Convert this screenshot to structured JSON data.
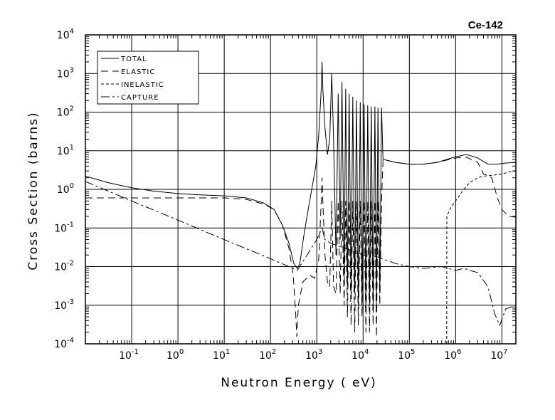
{
  "chart_data": {
    "type": "line",
    "title": "Ce-142",
    "xlabel": "Neutron Energy ( eV)",
    "ylabel": "Cross Section (barns)",
    "xscale": "log",
    "yscale": "log",
    "xlim": [
      0.01,
      20000000
    ],
    "ylim": [
      0.0001,
      10000
    ],
    "grid": true,
    "legend_position": "top-left",
    "x_ticks": [
      {
        "base": "10",
        "exp": "-1",
        "value": 0.1
      },
      {
        "base": "10",
        "exp": "0",
        "value": 1
      },
      {
        "base": "10",
        "exp": "1",
        "value": 10
      },
      {
        "base": "10",
        "exp": "2",
        "value": 100
      },
      {
        "base": "10",
        "exp": "3",
        "value": 1000
      },
      {
        "base": "10",
        "exp": "4",
        "value": 10000
      },
      {
        "base": "10",
        "exp": "5",
        "value": 100000
      },
      {
        "base": "10",
        "exp": "6",
        "value": 1000000
      },
      {
        "base": "10",
        "exp": "7",
        "value": 10000000
      }
    ],
    "y_ticks": [
      {
        "base": "10",
        "exp": "-4",
        "value": 0.0001
      },
      {
        "base": "10",
        "exp": "-3",
        "value": 0.001
      },
      {
        "base": "10",
        "exp": "-2",
        "value": 0.01
      },
      {
        "base": "10",
        "exp": "-1",
        "value": 0.1
      },
      {
        "base": "10",
        "exp": "0",
        "value": 1
      },
      {
        "base": "10",
        "exp": "1",
        "value": 10
      },
      {
        "base": "10",
        "exp": "2",
        "value": 100
      },
      {
        "base": "10",
        "exp": "3",
        "value": 1000
      },
      {
        "base": "10",
        "exp": "4",
        "value": 10000
      }
    ],
    "series": [
      {
        "name": "TOTAL",
        "dash": "none",
        "points": [
          [
            0.01,
            2.2
          ],
          [
            0.03,
            1.5
          ],
          [
            0.1,
            1.1
          ],
          [
            0.3,
            0.9
          ],
          [
            1,
            0.78
          ],
          [
            3,
            0.72
          ],
          [
            10,
            0.68
          ],
          [
            30,
            0.6
          ],
          [
            70,
            0.45
          ],
          [
            120,
            0.3
          ],
          [
            180,
            0.12
          ],
          [
            250,
            0.04
          ],
          [
            320,
            0.012
          ],
          [
            380,
            0.009
          ],
          [
            430,
            0.012
          ],
          [
            520,
            0.06
          ],
          [
            650,
            0.3
          ],
          [
            800,
            1.2
          ],
          [
            950,
            4
          ],
          [
            1100,
            25
          ],
          [
            1250,
            400
          ],
          [
            1300,
            2000
          ],
          [
            1350,
            400
          ],
          [
            1500,
            40
          ],
          [
            1700,
            8
          ],
          [
            1900,
            20
          ],
          [
            2100,
            1000
          ],
          [
            2300,
            20
          ],
          [
            2600,
            0.02
          ],
          [
            2900,
            300
          ],
          [
            3200,
            0.05
          ],
          [
            3500,
            600
          ],
          [
            3900,
            0.005
          ],
          [
            4200,
            400
          ],
          [
            4600,
            0.003
          ],
          [
            5000,
            300
          ],
          [
            5500,
            0.002
          ],
          [
            6000,
            250
          ],
          [
            6600,
            0.002
          ],
          [
            7200,
            200
          ],
          [
            7900,
            0.001
          ],
          [
            8700,
            180
          ],
          [
            9500,
            0.001
          ],
          [
            10500,
            160
          ],
          [
            11500,
            0.0008
          ],
          [
            12600,
            150
          ],
          [
            13800,
            0.001
          ],
          [
            15000,
            140
          ],
          [
            16500,
            0.001
          ],
          [
            18000,
            140
          ],
          [
            19500,
            0.001
          ],
          [
            21000,
            130
          ],
          [
            23000,
            0.002
          ],
          [
            25000,
            130
          ],
          [
            27000,
            6
          ],
          [
            50000,
            5
          ],
          [
            100000,
            4.5
          ],
          [
            200000,
            4.5
          ],
          [
            400000,
            5
          ],
          [
            1000000,
            7
          ],
          [
            1700000,
            8
          ],
          [
            3000000,
            6.5
          ],
          [
            5000000,
            4.5
          ],
          [
            8000000,
            4.5
          ],
          [
            12000000,
            4.8
          ],
          [
            20000000,
            5
          ]
        ]
      },
      {
        "name": "ELASTIC",
        "dash": "10,6",
        "points": [
          [
            0.01,
            0.6
          ],
          [
            0.1,
            0.6
          ],
          [
            1,
            0.6
          ],
          [
            10,
            0.6
          ],
          [
            30,
            0.55
          ],
          [
            70,
            0.42
          ],
          [
            120,
            0.3
          ],
          [
            180,
            0.12
          ],
          [
            250,
            0.03
          ],
          [
            310,
            0.006
          ],
          [
            350,
            0.0006
          ],
          [
            370,
            0.00015
          ],
          [
            400,
            0.001
          ],
          [
            500,
            0.004
          ],
          [
            700,
            0.006
          ],
          [
            900,
            0.005
          ],
          [
            1100,
            0.015
          ],
          [
            1250,
            0.5
          ],
          [
            1300,
            2
          ],
          [
            1350,
            0.5
          ],
          [
            1500,
            0.02
          ],
          [
            1700,
            0.004
          ],
          [
            1900,
            0.003
          ],
          [
            2100,
            0.5
          ],
          [
            2300,
            0.003
          ],
          [
            2600,
            0.002
          ],
          [
            2900,
            0.5
          ],
          [
            3200,
            0.002
          ],
          [
            3500,
            0.5
          ],
          [
            3900,
            0.001
          ],
          [
            4200,
            0.5
          ],
          [
            4600,
            0.0005
          ],
          [
            5000,
            0.5
          ],
          [
            5500,
            0.0003
          ],
          [
            6000,
            0.5
          ],
          [
            6600,
            0.0002
          ],
          [
            7200,
            0.5
          ],
          [
            7900,
            0.0003
          ],
          [
            8700,
            0.5
          ],
          [
            9500,
            0.0005
          ],
          [
            10500,
            0.5
          ],
          [
            11500,
            0.0002
          ],
          [
            12600,
            0.5
          ],
          [
            13800,
            0.0002
          ],
          [
            15000,
            0.5
          ],
          [
            16500,
            0.0003
          ],
          [
            18000,
            0.5
          ],
          [
            19500,
            0.00015
          ],
          [
            21000,
            0.5
          ],
          [
            23000,
            0.001
          ],
          [
            25000,
            0.5
          ],
          [
            27000,
            6
          ],
          [
            50000,
            5
          ],
          [
            100000,
            4.5
          ],
          [
            200000,
            4.5
          ],
          [
            400000,
            5
          ],
          [
            1000000,
            6.5
          ],
          [
            1700000,
            6.8
          ],
          [
            3000000,
            5
          ],
          [
            4000000,
            2.5
          ],
          [
            5000000,
            2.3
          ],
          [
            6000000,
            2
          ],
          [
            8000000,
            0.6
          ],
          [
            10000000,
            0.3
          ],
          [
            14000000,
            0.2
          ],
          [
            20000000,
            0.19
          ]
        ]
      },
      {
        "name": "INELASTIC",
        "dash": "4,3",
        "points": [
          [
            640000,
            0.0001
          ],
          [
            645000,
            0.2
          ],
          [
            700000,
            0.25
          ],
          [
            800000,
            0.35
          ],
          [
            1000000,
            0.5
          ],
          [
            1500000,
            1
          ],
          [
            2000000,
            1.5
          ],
          [
            3000000,
            2
          ],
          [
            4000000,
            2.2
          ],
          [
            6000000,
            2.3
          ],
          [
            8000000,
            2.4
          ],
          [
            10000000,
            2.5
          ],
          [
            14000000,
            2.8
          ],
          [
            20000000,
            3
          ]
        ]
      },
      {
        "name": "CAPTURE",
        "dash": "12,4,3,4",
        "points": [
          [
            0.01,
            1.6
          ],
          [
            0.1,
            0.5
          ],
          [
            1,
            0.16
          ],
          [
            10,
            0.05
          ],
          [
            100,
            0.016
          ],
          [
            380,
            0.008
          ],
          [
            1000,
            0.05
          ],
          [
            1300,
            0.1
          ],
          [
            1500,
            0.05
          ],
          [
            2000,
            0.04
          ],
          [
            4000,
            0.03
          ],
          [
            10000,
            0.02
          ],
          [
            20000,
            0.018
          ],
          [
            50000,
            0.012
          ],
          [
            100000,
            0.01
          ],
          [
            200000,
            0.009
          ],
          [
            500000,
            0.01
          ],
          [
            1000000,
            0.008
          ],
          [
            1500000,
            0.009
          ],
          [
            2000000,
            0.008
          ],
          [
            3000000,
            0.007
          ],
          [
            5000000,
            0.003
          ],
          [
            7000000,
            0.0006
          ],
          [
            9000000,
            0.0003
          ],
          [
            12000000,
            0.0008
          ],
          [
            20000000,
            0.001
          ]
        ]
      }
    ]
  }
}
